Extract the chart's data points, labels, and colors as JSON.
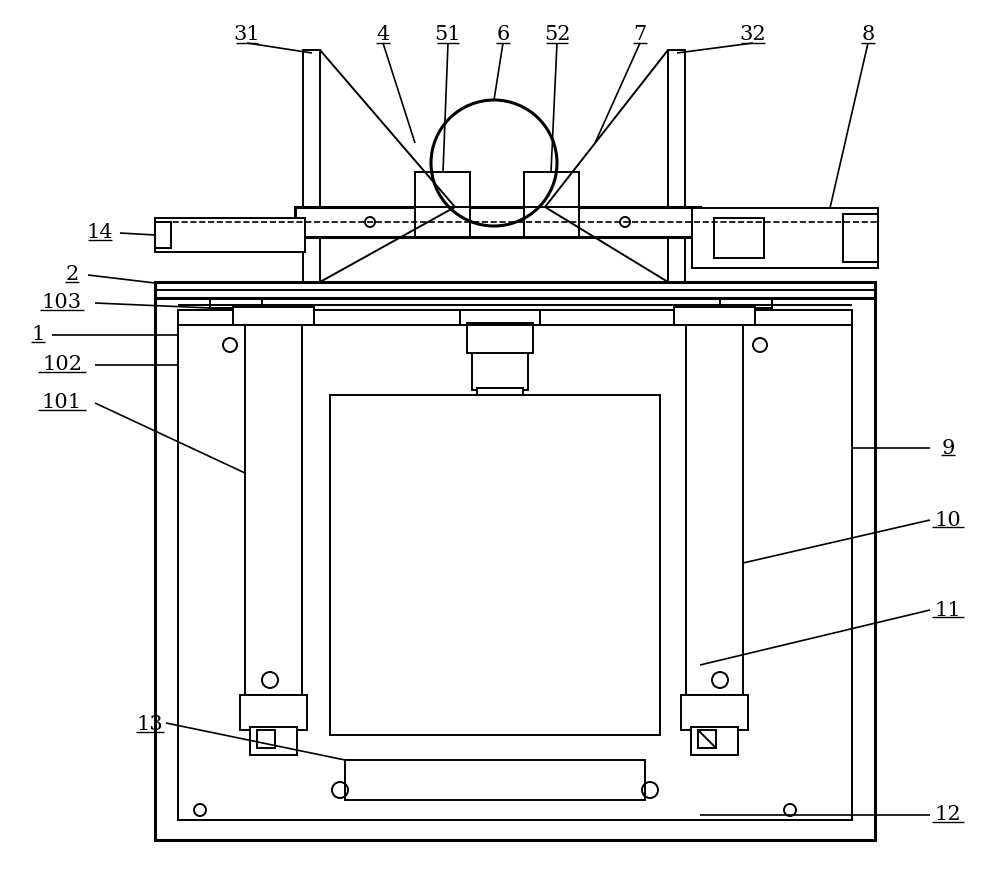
{
  "bg_color": "#ffffff",
  "lc": "#000000",
  "lw": 1.4,
  "tlw": 2.2,
  "fs": 15,
  "figsize": [
    10.0,
    8.93
  ],
  "dpi": 100
}
